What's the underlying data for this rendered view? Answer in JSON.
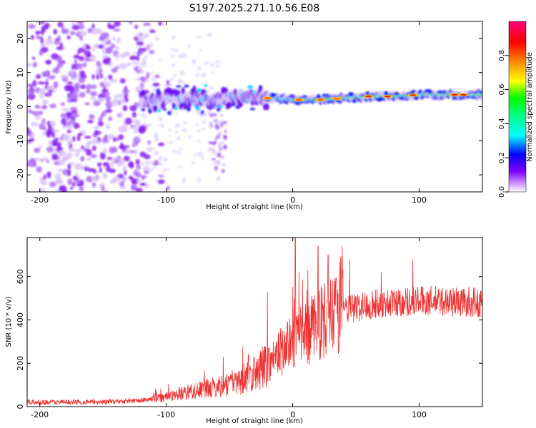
{
  "title": "S197.2025.271.10.56.E08",
  "chart_data": [
    {
      "type": "heatmap",
      "name": "spectrogram",
      "xlabel": "Height of straight line (km)",
      "ylabel": "Frequency (Hz)",
      "xlim": [
        -210,
        150
      ],
      "ylim": [
        -25,
        25
      ],
      "xticks": [
        -200,
        -100,
        0,
        100
      ],
      "yticks": [
        -20,
        -10,
        0,
        10,
        20
      ],
      "colorbar": {
        "label": "Normalized spectral amplitude",
        "range": [
          0,
          1
        ],
        "ticks": [
          0.0,
          0.2,
          0.4,
          0.6,
          0.8
        ],
        "colors": [
          "#ffffff",
          "#c080ff",
          "#8000ff",
          "#0000ff",
          "#00ffff",
          "#00ff00",
          "#ffff00",
          "#ff8000",
          "#ff0000",
          "#ff0080"
        ]
      },
      "ridge": {
        "x": [
          -115,
          -100,
          -80,
          -60,
          -40,
          -20,
          0,
          20,
          40,
          60,
          80,
          100,
          120,
          150
        ],
        "freq": [
          1.5,
          2,
          2.5,
          2,
          3,
          2.5,
          2,
          2,
          2.5,
          3,
          3,
          3.5,
          3.5,
          3.5
        ],
        "amplitude": [
          0.35,
          0.3,
          0.3,
          0.35,
          0.3,
          0.55,
          0.6,
          0.65,
          0.65,
          0.7,
          0.7,
          0.75,
          0.75,
          0.7
        ]
      }
    },
    {
      "type": "line",
      "name": "snr",
      "xlabel": "Height of straight line (km)",
      "ylabel": "SNR (10 * v/v)",
      "xlim": [
        -210,
        150
      ],
      "ylim": [
        0,
        780
      ],
      "xticks": [
        -200,
        -100,
        0,
        100
      ],
      "yticks": [
        0,
        200,
        400,
        600
      ],
      "color": "#ee3030",
      "trend": {
        "x": [
          -210,
          -150,
          -120,
          -100,
          -80,
          -60,
          -40,
          -30,
          -20,
          -10,
          0,
          10,
          20,
          40,
          60,
          80,
          100,
          120,
          150
        ],
        "y": [
          20,
          22,
          28,
          45,
          70,
          90,
          120,
          150,
          200,
          250,
          300,
          330,
          380,
          440,
          470,
          480,
          490,
          485,
          480
        ]
      },
      "spikes": {
        "x": [
          -55,
          -35,
          -20,
          2,
          5,
          12,
          20,
          28,
          38,
          45,
          70,
          95
        ],
        "y": [
          230,
          240,
          530,
          780,
          620,
          630,
          740,
          700,
          690,
          680,
          620,
          680
        ]
      }
    }
  ]
}
